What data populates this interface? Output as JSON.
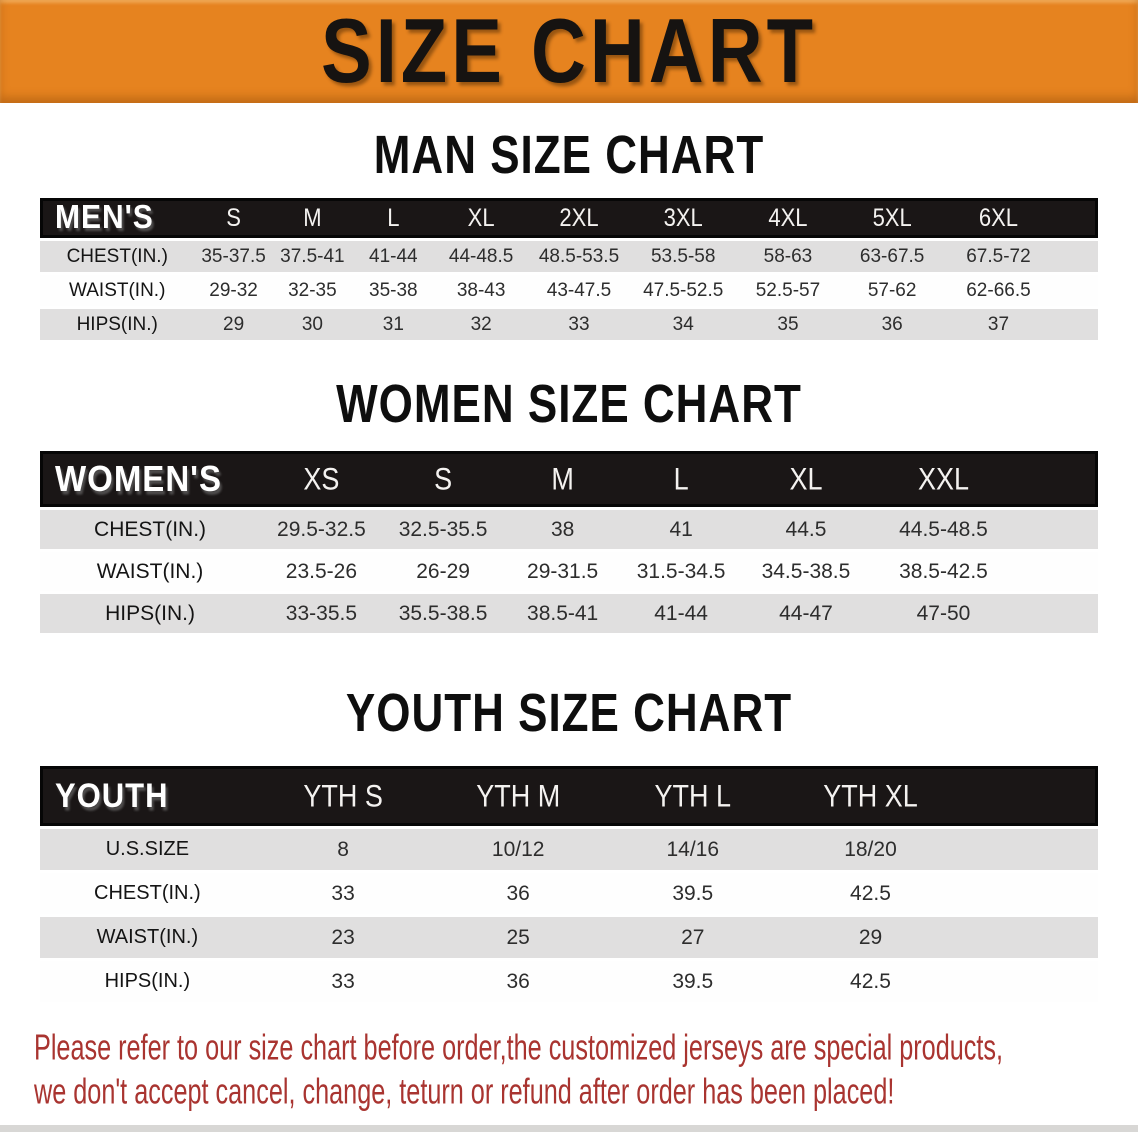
{
  "banner": {
    "title": "SIZE CHART"
  },
  "colors": {
    "banner_bg": "#E6831F",
    "header_bar_bg": "#1A1616",
    "row_alt_bg": "#E0DFDF",
    "note_color": "#A93430"
  },
  "sections": [
    {
      "heading": "MAN SIZE CHART",
      "table": {
        "corner_label": "MEN'S",
        "columns": [
          "S",
          "M",
          "L",
          "XL",
          "2XL",
          "3XL",
          "4XL",
          "5XL",
          "6XL"
        ],
        "rows": [
          {
            "label": "CHEST(IN.)",
            "values": [
              "35-37.5",
              "37.5-41",
              "41-44",
              "44-48.5",
              "48.5-53.5",
              "53.5-58",
              "58-63",
              "63-67.5",
              "67.5-72"
            ]
          },
          {
            "label": "WAIST(IN.)",
            "values": [
              "29-32",
              "32-35",
              "35-38",
              "38-43",
              "43-47.5",
              "47.5-52.5",
              "52.5-57",
              "57-62",
              "62-66.5"
            ]
          },
          {
            "label": "HIPS(IN.)",
            "values": [
              "29",
              "30",
              "31",
              "32",
              "33",
              "34",
              "35",
              "36",
              "37"
            ]
          }
        ]
      }
    },
    {
      "heading": "WOMEN SIZE CHART",
      "table": {
        "corner_label": "WOMEN'S",
        "columns": [
          "XS",
          "S",
          "M",
          "L",
          "XL",
          "XXL"
        ],
        "rows": [
          {
            "label": "CHEST(IN.)",
            "values": [
              "29.5-32.5",
              "32.5-35.5",
              "38",
              "41",
              "44.5",
              "44.5-48.5"
            ]
          },
          {
            "label": "WAIST(IN.)",
            "values": [
              "23.5-26",
              "26-29",
              "29-31.5",
              "31.5-34.5",
              "34.5-38.5",
              "38.5-42.5"
            ]
          },
          {
            "label": "HIPS(IN.)",
            "values": [
              "33-35.5",
              "35.5-38.5",
              "38.5-41",
              "41-44",
              "44-47",
              "47-50"
            ]
          }
        ]
      }
    },
    {
      "heading": "YOUTH SIZE CHART",
      "table": {
        "corner_label": "YOUTH",
        "columns": [
          "YTH S",
          "YTH M",
          "YTH L",
          "YTH XL"
        ],
        "rows": [
          {
            "label": "U.S.SIZE",
            "values": [
              "8",
              "10/12",
              "14/16",
              "18/20"
            ]
          },
          {
            "label": "CHEST(IN.)",
            "values": [
              "33",
              "36",
              "39.5",
              "42.5"
            ]
          },
          {
            "label": "WAIST(IN.)",
            "values": [
              "23",
              "25",
              "27",
              "29"
            ]
          },
          {
            "label": "HIPS(IN.)",
            "values": [
              "33",
              "36",
              "39.5",
              "42.5"
            ]
          }
        ]
      }
    }
  ],
  "note": {
    "line1": "Please refer to our size chart before order,the customized jerseys are special products,",
    "line2": "we don't accept cancel, change, teturn or refund after order has been placed!"
  }
}
